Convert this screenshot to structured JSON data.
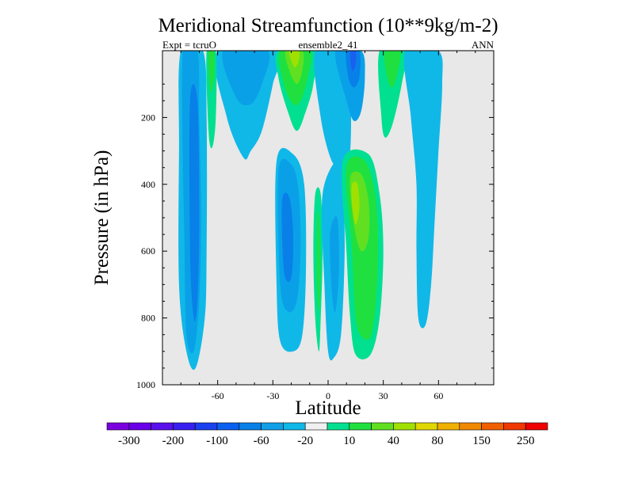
{
  "chart_data": {
    "type": "filled-contour",
    "title": "Meridional Streamfunction (10**9kg/m-2)",
    "subtitle_left": "Expt = tcruO",
    "subtitle_center": "ensemble2_41",
    "subtitle_right": "ANN",
    "xlabel": "Latitude",
    "ylabel": "Pressure (in hPa)",
    "xlim": [
      -90,
      90
    ],
    "ylim": [
      1000,
      0
    ],
    "x_ticks": [
      -60,
      -30,
      0,
      30,
      60
    ],
    "y_ticks": [
      200,
      400,
      600,
      800,
      1000
    ],
    "x_tick_labels": [
      "-60",
      "-30",
      "0",
      "30",
      "60"
    ],
    "y_tick_labels": [
      "200",
      "400",
      "600",
      "800",
      "1000"
    ],
    "background_color": "#e8e8e8",
    "colorbar": {
      "colors": [
        "#7a00e0",
        "#6a00e8",
        "#5a10ec",
        "#3a20f0",
        "#1a40f0",
        "#0a60f0",
        "#0880e8",
        "#10a0e8",
        "#10b8e8",
        "#f0f0f0",
        "#00e090",
        "#20e040",
        "#60e020",
        "#a0e000",
        "#e0d800",
        "#f0b000",
        "#f08800",
        "#f06000",
        "#f03800",
        "#f00000"
      ],
      "tick_labels": [
        "-300",
        "-200",
        "-100",
        "-60",
        "-20",
        "10",
        "40",
        "80",
        "150",
        "250"
      ]
    },
    "contour_regions": [
      {
        "name": "cell-sh-outer",
        "level": "-20",
        "color": "#10b8e8",
        "outline": [
          [
            -80,
            0
          ],
          [
            -68,
            0
          ],
          [
            -66,
            200
          ],
          [
            -66,
            600
          ],
          [
            -67,
            800
          ],
          [
            -72,
            950
          ],
          [
            -77,
            900
          ],
          [
            -81,
            700
          ],
          [
            -81,
            300
          ],
          [
            -80,
            0
          ]
        ]
      },
      {
        "name": "cell-sh-mid",
        "level": "-60",
        "color": "#0aa0e8",
        "outline": [
          [
            -79,
            0
          ],
          [
            -71,
            0
          ],
          [
            -70,
            200
          ],
          [
            -69,
            500
          ],
          [
            -70,
            750
          ],
          [
            -73,
            900
          ],
          [
            -77,
            850
          ],
          [
            -78,
            600
          ],
          [
            -79,
            0
          ]
        ]
      },
      {
        "name": "cell-sh-core",
        "level": "-100",
        "color": "#0880e8",
        "outline": [
          [
            -75,
            150
          ],
          [
            -71,
            150
          ],
          [
            -70,
            500
          ],
          [
            -71,
            750
          ],
          [
            -73,
            800
          ],
          [
            -75,
            600
          ],
          [
            -75,
            150
          ]
        ]
      },
      {
        "name": "upper-sh-neg",
        "level": "-20",
        "color": "#10b8e8",
        "outline": [
          [
            -60,
            0
          ],
          [
            -27,
            0
          ],
          [
            -30,
            100
          ],
          [
            -36,
            240
          ],
          [
            -42,
            300
          ],
          [
            -46,
            320
          ],
          [
            -55,
            200
          ],
          [
            -60,
            0
          ]
        ]
      },
      {
        "name": "upper-sh-neg-inner",
        "level": "-60",
        "color": "#0aa0e8",
        "outline": [
          [
            -57,
            0
          ],
          [
            -33,
            0
          ],
          [
            -36,
            100
          ],
          [
            -42,
            160
          ],
          [
            -50,
            140
          ],
          [
            -57,
            0
          ]
        ]
      },
      {
        "name": "pos-upper-left",
        "level": "10",
        "color": "#00e090",
        "outline": [
          [
            -66,
            0
          ],
          [
            -61,
            0
          ],
          [
            -61,
            200
          ],
          [
            -63,
            290
          ],
          [
            -65,
            240
          ],
          [
            -66,
            0
          ]
        ]
      },
      {
        "name": "pos-upper-left-inner",
        "level": "40",
        "color": "#20e040",
        "outline": [
          [
            -65,
            0
          ],
          [
            -62,
            0
          ],
          [
            -62,
            80
          ],
          [
            -64,
            120
          ],
          [
            -65,
            0
          ]
        ]
      },
      {
        "name": "pos-upper-mid",
        "level": "10",
        "color": "#00e090",
        "outline": [
          [
            -27,
            0
          ],
          [
            -7,
            0
          ],
          [
            -8,
            100
          ],
          [
            -12,
            180
          ],
          [
            -17,
            240
          ],
          [
            -22,
            180
          ],
          [
            -27,
            80
          ],
          [
            -27,
            0
          ]
        ]
      },
      {
        "name": "pos-upper-mid-l2",
        "level": "40",
        "color": "#20e040",
        "outline": [
          [
            -26,
            0
          ],
          [
            -10,
            0
          ],
          [
            -11,
            80
          ],
          [
            -15,
            150
          ],
          [
            -19,
            160
          ],
          [
            -24,
            100
          ],
          [
            -26,
            0
          ]
        ]
      },
      {
        "name": "pos-upper-mid-l3",
        "level": "80",
        "color": "#60e020",
        "outline": [
          [
            -23,
            0
          ],
          [
            -14,
            0
          ],
          [
            -14,
            60
          ],
          [
            -17,
            100
          ],
          [
            -21,
            60
          ],
          [
            -23,
            0
          ]
        ]
      },
      {
        "name": "pos-upper-mid-l4",
        "level": "150",
        "color": "#a0e000",
        "outline": [
          [
            -21,
            0
          ],
          [
            -16,
            0
          ],
          [
            -16,
            30
          ],
          [
            -18,
            50
          ],
          [
            -20,
            30
          ],
          [
            -21,
            0
          ]
        ]
      },
      {
        "name": "neg-upper-center",
        "level": "-20",
        "color": "#10b8e8",
        "outline": [
          [
            -7,
            0
          ],
          [
            8,
            0
          ],
          [
            12,
            100
          ],
          [
            12,
            300
          ],
          [
            8,
            350
          ],
          [
            2,
            330
          ],
          [
            -4,
            200
          ],
          [
            -7,
            0
          ]
        ]
      },
      {
        "name": "neg-upper-center-l2",
        "level": "-60",
        "color": "#0aa0e8",
        "outline": [
          [
            4,
            0
          ],
          [
            18,
            0
          ],
          [
            20,
            80
          ],
          [
            18,
            180
          ],
          [
            14,
            210
          ],
          [
            10,
            150
          ],
          [
            4,
            0
          ]
        ]
      },
      {
        "name": "neg-upper-center-l3",
        "level": "-100",
        "color": "#0880e8",
        "outline": [
          [
            10,
            0
          ],
          [
            17,
            0
          ],
          [
            17,
            80
          ],
          [
            14,
            110
          ],
          [
            11,
            80
          ],
          [
            10,
            0
          ]
        ]
      },
      {
        "name": "neg-upper-center-l4",
        "level": "-200",
        "color": "#1a60f0",
        "outline": [
          [
            12,
            0
          ],
          [
            15,
            0
          ],
          [
            15,
            40
          ],
          [
            13,
            60
          ],
          [
            12,
            0
          ]
        ]
      },
      {
        "name": "pos-upper-right",
        "level": "10",
        "color": "#00e090",
        "outline": [
          [
            28,
            0
          ],
          [
            42,
            0
          ],
          [
            40,
            100
          ],
          [
            35,
            220
          ],
          [
            31,
            260
          ],
          [
            29,
            200
          ],
          [
            28,
            0
          ]
        ]
      },
      {
        "name": "pos-upper-right-l2",
        "level": "40",
        "color": "#20e040",
        "outline": [
          [
            31,
            0
          ],
          [
            39,
            0
          ],
          [
            38,
            60
          ],
          [
            35,
            110
          ],
          [
            32,
            80
          ],
          [
            31,
            0
          ]
        ]
      },
      {
        "name": "neg-right-column",
        "level": "-20",
        "color": "#10b8e8",
        "outline": [
          [
            42,
            0
          ],
          [
            60,
            0
          ],
          [
            62,
            100
          ],
          [
            60,
            300
          ],
          [
            58,
            500
          ],
          [
            56,
            700
          ],
          [
            53,
            820
          ],
          [
            49,
            800
          ],
          [
            48,
            600
          ],
          [
            48,
            400
          ],
          [
            45,
            200
          ],
          [
            42,
            0
          ]
        ]
      },
      {
        "name": "neg-lower-left",
        "level": "-20",
        "color": "#10b8e8",
        "outline": [
          [
            -28,
            330
          ],
          [
            -19,
            310
          ],
          [
            -13,
            400
          ],
          [
            -12,
            650
          ],
          [
            -14,
            850
          ],
          [
            -19,
            900
          ],
          [
            -26,
            870
          ],
          [
            -28,
            700
          ],
          [
            -28,
            330
          ]
        ]
      },
      {
        "name": "neg-lower-left-l2",
        "level": "-60",
        "color": "#0aa0e8",
        "outline": [
          [
            -27,
            360
          ],
          [
            -20,
            340
          ],
          [
            -16,
            420
          ],
          [
            -15,
            600
          ],
          [
            -17,
            750
          ],
          [
            -22,
            780
          ],
          [
            -26,
            700
          ],
          [
            -27,
            360
          ]
        ]
      },
      {
        "name": "neg-lower-left-l3",
        "level": "-100",
        "color": "#0880e8",
        "outline": [
          [
            -25,
            450
          ],
          [
            -21,
            440
          ],
          [
            -19,
            550
          ],
          [
            -20,
            680
          ],
          [
            -24,
            660
          ],
          [
            -25,
            450
          ]
        ]
      },
      {
        "name": "pos-thin-center",
        "level": "10",
        "color": "#00e090",
        "outline": [
          [
            -7,
            430
          ],
          [
            -4,
            430
          ],
          [
            -3,
            600
          ],
          [
            -4,
            800
          ],
          [
            -5,
            900
          ],
          [
            -7,
            800
          ],
          [
            -8,
            600
          ],
          [
            -7,
            430
          ]
        ]
      },
      {
        "name": "pos-thin-center-l2",
        "level": "40",
        "color": "#20e040",
        "outline": [
          [
            -6,
            500
          ],
          [
            -5,
            500
          ],
          [
            -4,
            650
          ],
          [
            -5,
            780
          ],
          [
            -6,
            700
          ],
          [
            -6,
            500
          ]
        ]
      },
      {
        "name": "neg-lower-center",
        "level": "-20",
        "color": "#10b8e8",
        "outline": [
          [
            -3,
            430
          ],
          [
            6,
            320
          ],
          [
            8,
            400
          ],
          [
            9,
            600
          ],
          [
            7,
            850
          ],
          [
            3,
            920
          ],
          [
            0,
            900
          ],
          [
            -2,
            700
          ],
          [
            -3,
            430
          ]
        ]
      },
      {
        "name": "neg-lower-center-l2",
        "level": "-60",
        "color": "#0aa0e8",
        "outline": [
          [
            1,
            550
          ],
          [
            5,
            500
          ],
          [
            6,
            650
          ],
          [
            4,
            780
          ],
          [
            2,
            720
          ],
          [
            1,
            550
          ]
        ]
      },
      {
        "name": "pos-lower-right",
        "level": "10",
        "color": "#00e090",
        "outline": [
          [
            8,
            330
          ],
          [
            22,
            310
          ],
          [
            28,
            430
          ],
          [
            30,
            600
          ],
          [
            28,
            800
          ],
          [
            23,
            910
          ],
          [
            15,
            910
          ],
          [
            12,
            800
          ],
          [
            10,
            600
          ],
          [
            8,
            330
          ]
        ]
      },
      {
        "name": "pos-lower-right-l2",
        "level": "40",
        "color": "#20e040",
        "outline": [
          [
            10,
            350
          ],
          [
            20,
            330
          ],
          [
            26,
            450
          ],
          [
            27,
            650
          ],
          [
            24,
            840
          ],
          [
            19,
            860
          ],
          [
            15,
            800
          ],
          [
            13,
            600
          ],
          [
            10,
            350
          ]
        ]
      },
      {
        "name": "pos-lower-right-l3",
        "level": "80",
        "color": "#60e020",
        "outline": [
          [
            12,
            380
          ],
          [
            18,
            370
          ],
          [
            22,
            450
          ],
          [
            22,
            560
          ],
          [
            18,
            600
          ],
          [
            14,
            520
          ],
          [
            12,
            380
          ]
        ]
      },
      {
        "name": "pos-lower-right-l4",
        "level": "150",
        "color": "#a0e000",
        "outline": [
          [
            13,
            400
          ],
          [
            16,
            400
          ],
          [
            17,
            470
          ],
          [
            15,
            520
          ],
          [
            13,
            460
          ],
          [
            13,
            400
          ]
        ]
      }
    ]
  }
}
